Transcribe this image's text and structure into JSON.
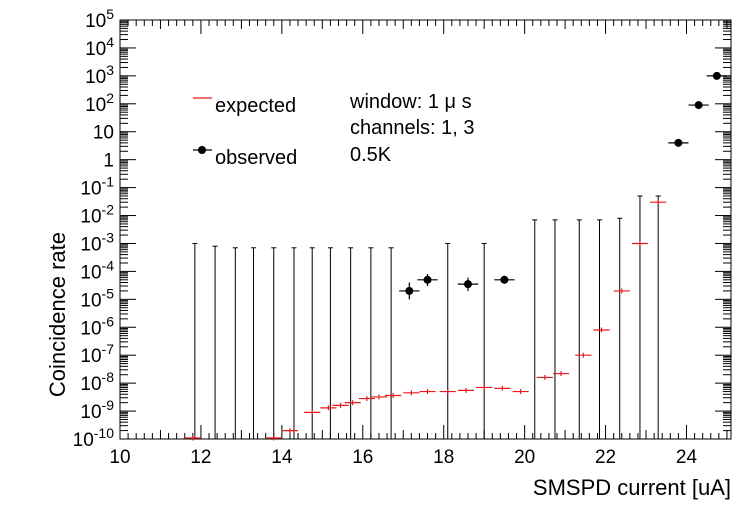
{
  "chart_data": {
    "type": "scatter",
    "xlabel": "SMSPD current [uA]",
    "ylabel": "Coincidence rate",
    "xlim": [
      10,
      25.1
    ],
    "ylim_log10": [
      -10,
      5
    ],
    "x_ticks": [
      10,
      12,
      14,
      16,
      18,
      20,
      22,
      24
    ],
    "x_tick_labels": [
      "10",
      "12",
      "14",
      "16",
      "18",
      "20",
      "22",
      "24"
    ],
    "y_tick_labels": [
      {
        "base": "10",
        "exp": "-10"
      },
      {
        "base": "10",
        "exp": "-9"
      },
      {
        "base": "10",
        "exp": "-8"
      },
      {
        "base": "10",
        "exp": "-7"
      },
      {
        "base": "10",
        "exp": "-6"
      },
      {
        "base": "10",
        "exp": "-5"
      },
      {
        "base": "10",
        "exp": "-4"
      },
      {
        "base": "10",
        "exp": "-3"
      },
      {
        "base": "10",
        "exp": "-2"
      },
      {
        "base": "10",
        "exp": "-1"
      },
      {
        "base": "1",
        "exp": ""
      },
      {
        "base": "10",
        "exp": ""
      },
      {
        "base": "10",
        "exp": "2"
      },
      {
        "base": "10",
        "exp": "3"
      },
      {
        "base": "10",
        "exp": "4"
      },
      {
        "base": "10",
        "exp": "5"
      }
    ],
    "legend": {
      "expected": "expected",
      "observed": "observed"
    },
    "annotations": {
      "window": "window: 1 μ s",
      "channels": "channels: 1, 3",
      "temperature": "0.5K"
    },
    "colors": {
      "expected": "#e8191d",
      "observed": "#000000"
    },
    "series": [
      {
        "name": "expected",
        "xerr": 0.2,
        "points": [
          {
            "x": 11.8,
            "y": 1e-10
          },
          {
            "x": 13.8,
            "y": 1e-10
          },
          {
            "x": 14.2,
            "y": 2e-10
          },
          {
            "x": 14.75,
            "y": 9e-10
          },
          {
            "x": 15.15,
            "y": 1.3e-09
          },
          {
            "x": 15.45,
            "y": 1.6e-09
          },
          {
            "x": 15.75,
            "y": 2e-09
          },
          {
            "x": 16.1,
            "y": 2.8e-09
          },
          {
            "x": 16.4,
            "y": 3.2e-09
          },
          {
            "x": 16.75,
            "y": 3.6e-09
          },
          {
            "x": 17.2,
            "y": 4.5e-09
          },
          {
            "x": 17.6,
            "y": 5e-09
          },
          {
            "x": 18.1,
            "y": 5e-09
          },
          {
            "x": 18.55,
            "y": 5.5e-09
          },
          {
            "x": 19.0,
            "y": 7e-09
          },
          {
            "x": 19.45,
            "y": 6.5e-09
          },
          {
            "x": 19.9,
            "y": 5e-09
          },
          {
            "x": 20.5,
            "y": 1.6e-08
          },
          {
            "x": 20.9,
            "y": 2.2e-08
          },
          {
            "x": 21.45,
            "y": 1e-07
          },
          {
            "x": 21.9,
            "y": 8e-07
          },
          {
            "x": 22.4,
            "y": 2e-05
          },
          {
            "x": 22.85,
            "y": 0.001
          },
          {
            "x": 23.3,
            "y": 0.03
          }
        ]
      },
      {
        "name": "observed",
        "xerr": 0.25,
        "points": [
          {
            "x": 17.15,
            "y": 2e-05,
            "lo": 1e-05,
            "hi": 4e-05
          },
          {
            "x": 17.6,
            "y": 5e-05,
            "lo": 3e-05,
            "hi": 8e-05
          },
          {
            "x": 18.6,
            "y": 3.5e-05,
            "lo": 2e-05,
            "hi": 6e-05
          },
          {
            "x": 19.5,
            "y": 5e-05,
            "lo": 4e-05,
            "hi": 7e-05
          },
          {
            "x": 23.8,
            "y": 4,
            "lo": 3,
            "hi": 5.5
          },
          {
            "x": 24.3,
            "y": 90,
            "lo": 80,
            "hi": 100
          },
          {
            "x": 24.75,
            "y": 1000,
            "lo": 900,
            "hi": 1100
          }
        ]
      },
      {
        "name": "upper_limits",
        "ymax": 0.001,
        "x": [
          11.85,
          12.35,
          12.85,
          13.3,
          13.8,
          14.3,
          14.75,
          15.2,
          15.7,
          16.2,
          16.7,
          18.1,
          19.0,
          20.25,
          20.75,
          21.35,
          21.85,
          22.35,
          22.85,
          23.3
        ],
        "y_top": [
          0.001,
          0.0008,
          0.0007,
          0.0007,
          0.0007,
          0.0007,
          0.0007,
          0.0007,
          0.0007,
          0.0007,
          0.0007,
          0.001,
          0.001,
          0.007,
          0.007,
          0.007,
          0.007,
          0.008,
          0.05,
          0.05
        ]
      }
    ]
  }
}
